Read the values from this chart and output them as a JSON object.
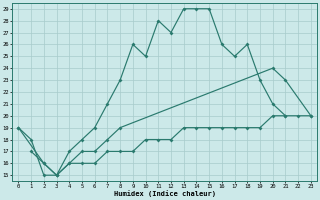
{
  "xlabel": "Humidex (Indice chaleur)",
  "bg_color": "#cce9e9",
  "grid_color": "#a8cccc",
  "line_color": "#2a7a6e",
  "xticks": [
    0,
    1,
    2,
    3,
    4,
    5,
    6,
    7,
    8,
    9,
    10,
    11,
    12,
    13,
    14,
    15,
    16,
    17,
    18,
    19,
    20,
    21,
    22,
    23
  ],
  "yticks": [
    15,
    16,
    17,
    18,
    19,
    20,
    21,
    22,
    23,
    24,
    25,
    26,
    27,
    28,
    29
  ],
  "line1_x": [
    0,
    1,
    2,
    3,
    4,
    5,
    6,
    7,
    8,
    9,
    10,
    11,
    12,
    13,
    14,
    15,
    16,
    17,
    18,
    19,
    20,
    21
  ],
  "line1_y": [
    19,
    18,
    15,
    15,
    17,
    18,
    19,
    21,
    23,
    26,
    25,
    28,
    27,
    29,
    29,
    29,
    26,
    25,
    26,
    23,
    21,
    20
  ],
  "line2_x": [
    0,
    2,
    3,
    4,
    5,
    6,
    7,
    8,
    20,
    21,
    23
  ],
  "line2_y": [
    19,
    16,
    15,
    16,
    17,
    17,
    18,
    19,
    24,
    23,
    20
  ],
  "line3_x": [
    1,
    2,
    3,
    4,
    5,
    6,
    7,
    8,
    9,
    10,
    11,
    12,
    13,
    14,
    15,
    16,
    17,
    18,
    19,
    20,
    21,
    22,
    23
  ],
  "line3_y": [
    17,
    16,
    15,
    16,
    16,
    16,
    17,
    17,
    17,
    18,
    18,
    18,
    19,
    19,
    19,
    19,
    19,
    19,
    19,
    20,
    20,
    20,
    20
  ]
}
